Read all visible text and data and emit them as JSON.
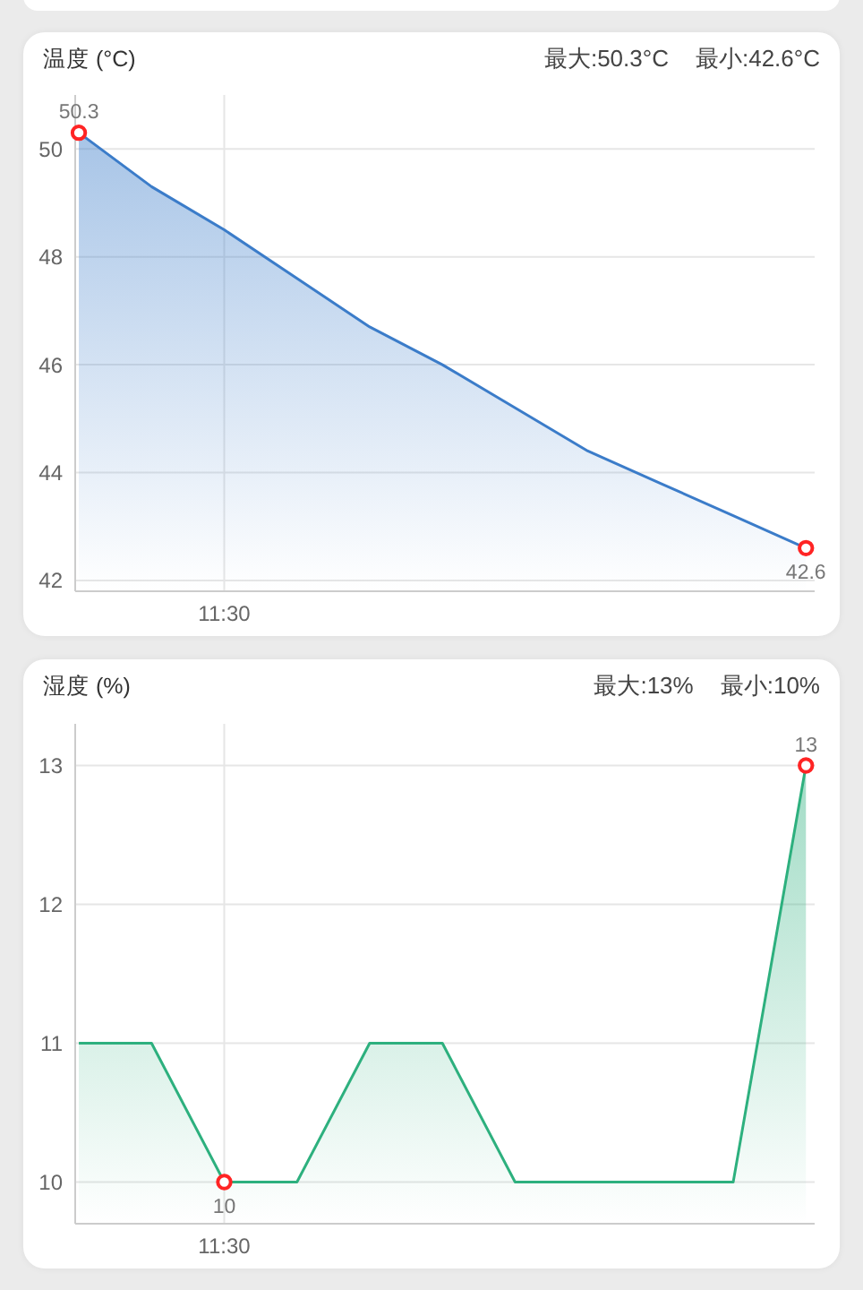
{
  "chart_data": [
    {
      "type": "area",
      "title": "温度 (°C)",
      "annotations": [
        "最大:50.3°C",
        "最小:42.6°C"
      ],
      "categories": [
        null,
        null,
        "11:30",
        null,
        null,
        null,
        null,
        null,
        null,
        null,
        null
      ],
      "series": [
        {
          "color": "#3b7cc9",
          "marker": "none",
          "values": [
            50.3,
            49.3,
            48.5,
            47.6,
            46.7,
            46.0,
            45.2,
            44.4,
            43.8,
            43.2,
            42.6
          ]
        },
        {
          "type": "scatter",
          "color": "#ff2424",
          "marker": "circle",
          "values": [
            50.3,
            null,
            null,
            null,
            null,
            null,
            null,
            null,
            null,
            null,
            42.6
          ],
          "value_labels": [
            "50.3",
            null,
            null,
            null,
            null,
            null,
            null,
            null,
            null,
            null,
            "42.6"
          ]
        }
      ],
      "ylim": [
        41.8,
        51
      ],
      "yticks": [
        42,
        44,
        46,
        48,
        50
      ],
      "grid": true
    },
    {
      "type": "area",
      "title": "湿度 (%)",
      "annotations": [
        "最大:13%",
        "最小:10%"
      ],
      "categories": [
        null,
        null,
        "11:30",
        null,
        null,
        null,
        null,
        null,
        null,
        null,
        null
      ],
      "series": [
        {
          "color": "#2db07e",
          "marker": "none",
          "values": [
            11,
            11,
            10,
            10,
            11,
            11,
            10,
            10,
            10,
            10,
            13
          ]
        },
        {
          "type": "scatter",
          "color": "#ff2424",
          "marker": "circle",
          "values": [
            null,
            null,
            10,
            null,
            null,
            null,
            null,
            null,
            null,
            null,
            13
          ],
          "value_labels": [
            null,
            null,
            "10",
            null,
            null,
            null,
            null,
            null,
            null,
            null,
            "13"
          ]
        }
      ],
      "ylim": [
        9.7,
        13.3
      ],
      "yticks": [
        10,
        11,
        12,
        13
      ],
      "grid": true
    }
  ]
}
